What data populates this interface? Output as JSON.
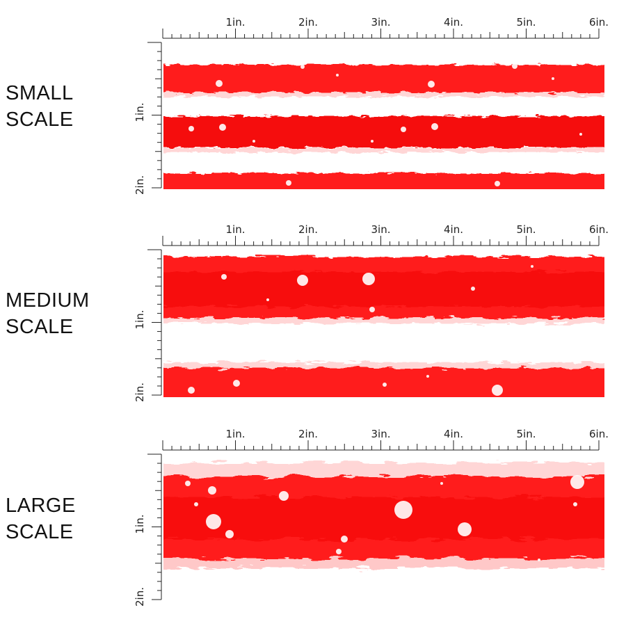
{
  "panels": [
    {
      "id": "small",
      "label_line1": "SMALL",
      "label_line2": "SCALE"
    },
    {
      "id": "medium",
      "label_line1": "MEDIUM",
      "label_line2": "SCALE"
    },
    {
      "id": "large",
      "label_line1": "LARGE",
      "label_line2": "SCALE"
    }
  ],
  "ruler": {
    "horizontal_labels": [
      "1in.",
      "2in.",
      "3in.",
      "4in.",
      "5in.",
      "6in."
    ],
    "vertical_labels": [
      "1in.",
      "2in."
    ]
  },
  "colors": {
    "stripe_red": "#ff1a1a",
    "stripe_deep_red": "#f20000",
    "stripe_white": "#ffffff",
    "ruler_ink": "#222222"
  }
}
